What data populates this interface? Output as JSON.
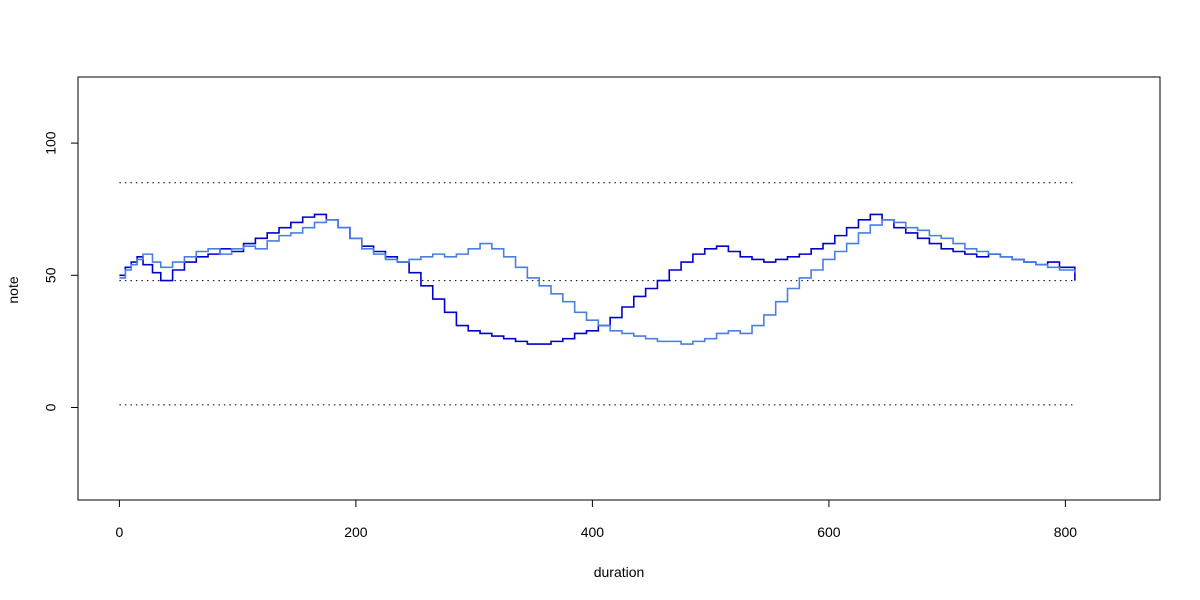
{
  "chart_data": {
    "type": "line",
    "step": true,
    "xlabel": "duration",
    "ylabel": "note",
    "xlim": [
      -35,
      880
    ],
    "ylim": [
      -35,
      125
    ],
    "xticks": [
      0,
      200,
      400,
      600,
      800
    ],
    "yticks": [
      0,
      50,
      100
    ],
    "reference_lines": [
      {
        "y": 1,
        "x_from": 0,
        "x_to": 808
      },
      {
        "y": 48,
        "x_from": 0,
        "x_to": 808
      },
      {
        "y": 85,
        "x_from": 0,
        "x_to": 808
      }
    ],
    "series": [
      {
        "color": "#0000cd",
        "x": [
          0,
          5,
          10,
          15,
          20,
          28,
          35,
          45,
          55,
          65,
          75,
          85,
          95,
          105,
          115,
          125,
          135,
          145,
          155,
          165,
          175,
          185,
          195,
          205,
          215,
          225,
          235,
          245,
          255,
          265,
          275,
          285,
          295,
          305,
          315,
          325,
          335,
          345,
          355,
          365,
          375,
          385,
          395,
          405,
          415,
          425,
          435,
          445,
          455,
          465,
          475,
          485,
          495,
          505,
          515,
          525,
          535,
          545,
          555,
          565,
          575,
          585,
          595,
          605,
          615,
          625,
          635,
          645,
          655,
          665,
          675,
          685,
          695,
          705,
          715,
          725,
          735,
          745,
          755,
          765,
          775,
          785,
          795,
          808
        ],
        "y": [
          50,
          53,
          55,
          57,
          54,
          51,
          48,
          52,
          55,
          57,
          58,
          60,
          59,
          62,
          64,
          66,
          68,
          70,
          72,
          73,
          71,
          68,
          64,
          61,
          59,
          57,
          55,
          51,
          46,
          41,
          36,
          31,
          29,
          28,
          27,
          26,
          25,
          24,
          24,
          25,
          26,
          28,
          29,
          31,
          34,
          38,
          42,
          45,
          48,
          52,
          55,
          58,
          60,
          61,
          59,
          57,
          56,
          55,
          56,
          57,
          58,
          60,
          62,
          65,
          68,
          71,
          73,
          71,
          68,
          66,
          64,
          62,
          60,
          59,
          58,
          57,
          58,
          57,
          56,
          55,
          54,
          55,
          53,
          48
        ]
      },
      {
        "color": "#4a7fe0",
        "x": [
          0,
          5,
          10,
          15,
          20,
          28,
          35,
          45,
          55,
          65,
          75,
          85,
          95,
          105,
          115,
          125,
          135,
          145,
          155,
          165,
          175,
          185,
          195,
          205,
          215,
          225,
          235,
          245,
          255,
          265,
          275,
          285,
          295,
          305,
          315,
          325,
          335,
          345,
          355,
          365,
          375,
          385,
          395,
          405,
          415,
          425,
          435,
          445,
          455,
          465,
          475,
          485,
          495,
          505,
          515,
          525,
          535,
          545,
          555,
          565,
          575,
          585,
          595,
          605,
          615,
          625,
          635,
          645,
          655,
          665,
          675,
          685,
          695,
          705,
          715,
          725,
          735,
          745,
          755,
          765,
          775,
          785,
          795,
          808
        ],
        "y": [
          49,
          52,
          54,
          56,
          58,
          55,
          53,
          55,
          57,
          59,
          60,
          58,
          60,
          61,
          60,
          63,
          65,
          66,
          68,
          70,
          71,
          68,
          64,
          60,
          58,
          56,
          55,
          56,
          57,
          58,
          57,
          58,
          60,
          62,
          60,
          57,
          53,
          49,
          46,
          43,
          40,
          36,
          33,
          31,
          29,
          28,
          27,
          26,
          25,
          25,
          24,
          25,
          26,
          28,
          29,
          28,
          31,
          35,
          40,
          45,
          49,
          52,
          56,
          59,
          62,
          66,
          69,
          71,
          70,
          68,
          67,
          65,
          64,
          62,
          60,
          59,
          58,
          57,
          56,
          55,
          54,
          53,
          52,
          51
        ]
      }
    ]
  }
}
